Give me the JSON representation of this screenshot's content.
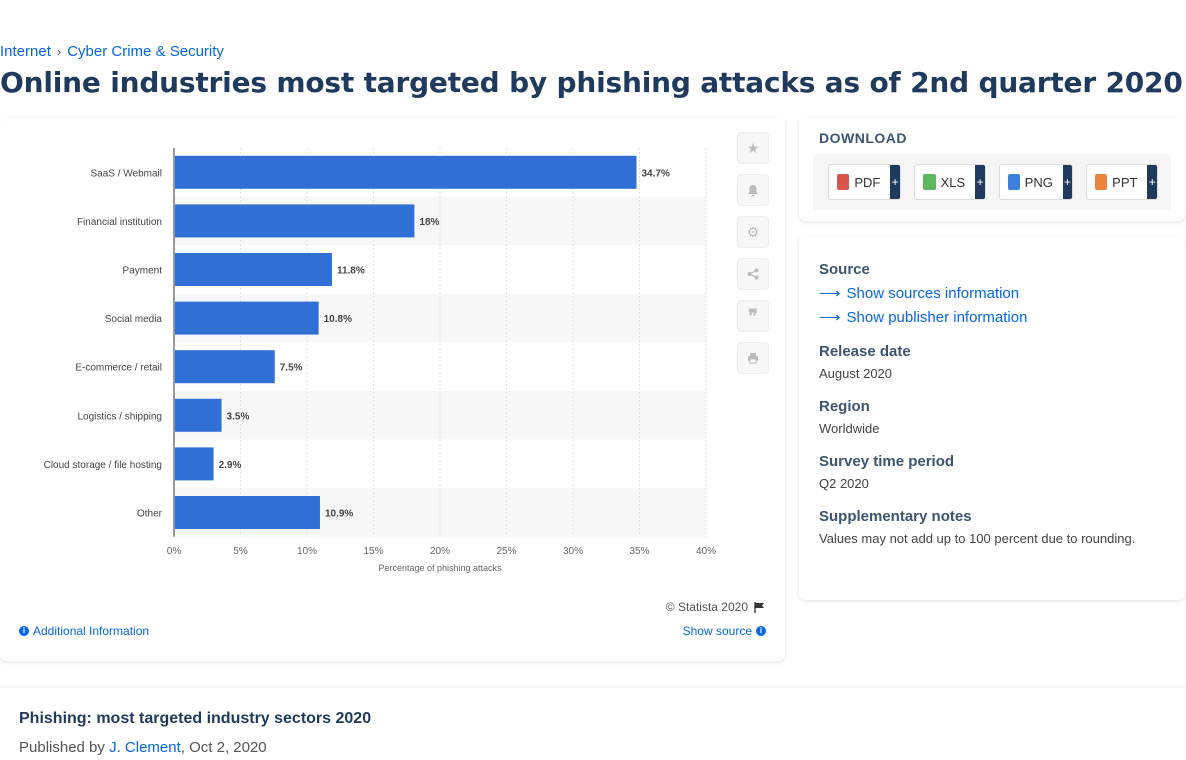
{
  "breadcrumb": {
    "items": [
      "Internet",
      "Cyber Crime & Security"
    ],
    "separator": "›"
  },
  "page_title": "Online industries most targeted by phishing attacks as of 2nd quarter 2020",
  "toolbar_icons": [
    "star-icon",
    "bell-icon",
    "gear-icon",
    "share-icon",
    "quote-icon",
    "print-icon"
  ],
  "chart_footer": {
    "copyright": "© Statista 2020",
    "additional_info": "Additional Information",
    "show_source": "Show source"
  },
  "download": {
    "title": "DOWNLOAD",
    "buttons": [
      {
        "label": "PDF",
        "icon": "pdf-icon",
        "color": "#d9534f"
      },
      {
        "label": "XLS",
        "icon": "xls-icon",
        "color": "#5cb85c"
      },
      {
        "label": "PNG",
        "icon": "png-icon",
        "color": "#3d7fd9"
      },
      {
        "label": "PPT",
        "icon": "ppt-icon",
        "color": "#e8843c"
      }
    ],
    "plus": "+"
  },
  "meta": {
    "source_label": "Source",
    "show_sources": "Show sources information",
    "show_publisher": "Show publisher information",
    "release_label": "Release date",
    "release_value": "August 2020",
    "region_label": "Region",
    "region_value": "Worldwide",
    "survey_label": "Survey time period",
    "survey_value": "Q2 2020",
    "notes_label": "Supplementary notes",
    "notes_value": "Values may not add up to 100 percent due to rounding."
  },
  "bottom": {
    "title": "Phishing: most targeted industry sectors 2020",
    "published_prefix": "Published by ",
    "author": "J. Clement",
    "date": ", Oct 2, 2020"
  },
  "colors": {
    "bar": "#2f6fd6",
    "accent": "#0666e5",
    "title": "#1f3a5c"
  },
  "chart_data": {
    "type": "bar",
    "orientation": "horizontal",
    "categories": [
      "SaaS / Webmail",
      "Financial institution",
      "Payment",
      "Social media",
      "E-commerce / retail",
      "Logistics / shipping",
      "Cloud storage / file hosting",
      "Other"
    ],
    "values": [
      34.7,
      18,
      11.8,
      10.8,
      7.5,
      3.5,
      2.9,
      10.9
    ],
    "data_labels": [
      "34.7%",
      "18%",
      "11.8%",
      "10.8%",
      "7.5%",
      "3.5%",
      "2.9%",
      "10.9%"
    ],
    "xlabel": "Percentage of phishing attacks",
    "ylabel": "",
    "xlim": [
      0,
      40
    ],
    "xticks": [
      "0%",
      "5%",
      "10%",
      "15%",
      "20%",
      "25%",
      "30%",
      "35%",
      "40%"
    ],
    "grid": true
  }
}
